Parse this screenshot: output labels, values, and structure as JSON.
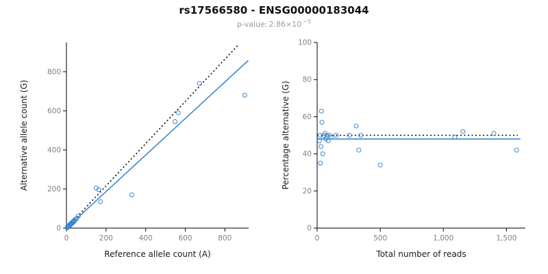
{
  "header": {
    "title": "rs17566580 - ENSG00000183044",
    "subtitle": {
      "label": "p-value:",
      "value_base": "2.86×10",
      "value_exponent": "−5"
    }
  },
  "colors": {
    "accent": "#3a87d0",
    "axis": "#000000",
    "tick_text": "#808080",
    "title_text": "#111111",
    "subtitle_text": "#9a9a9a"
  },
  "chart_data": [
    {
      "type": "scatter",
      "name": "allele-counts",
      "title": "",
      "xlabel": "Reference allele count (A)",
      "ylabel": "Alternative allele count (G)",
      "xlim": [
        0,
        920
      ],
      "ylim": [
        0,
        950
      ],
      "grid": false,
      "legend": "none",
      "point_color": "#3a87d0",
      "xticks": [
        {
          "v": 0,
          "label": "0"
        },
        {
          "v": 200,
          "label": "200"
        },
        {
          "v": 400,
          "label": "400"
        },
        {
          "v": 600,
          "label": "600"
        },
        {
          "v": 800,
          "label": "800"
        }
      ],
      "yticks": [
        {
          "v": 0,
          "label": "0"
        },
        {
          "v": 200,
          "label": "200"
        },
        {
          "v": 400,
          "label": "400"
        },
        {
          "v": 600,
          "label": "600"
        },
        {
          "v": 800,
          "label": "800"
        }
      ],
      "points": [
        [
          3,
          2
        ],
        [
          5,
          6
        ],
        [
          7,
          4
        ],
        [
          9,
          9
        ],
        [
          11,
          12
        ],
        [
          13,
          10
        ],
        [
          15,
          16
        ],
        [
          18,
          14
        ],
        [
          20,
          21
        ],
        [
          23,
          19
        ],
        [
          25,
          26
        ],
        [
          28,
          24
        ],
        [
          31,
          31
        ],
        [
          34,
          29
        ],
        [
          37,
          39
        ],
        [
          41,
          36
        ],
        [
          45,
          46
        ],
        [
          52,
          49
        ],
        [
          60,
          62
        ],
        [
          150,
          205
        ],
        [
          163,
          197
        ],
        [
          172,
          135
        ],
        [
          330,
          170
        ],
        [
          548,
          545
        ],
        [
          565,
          590
        ],
        [
          672,
          740
        ],
        [
          900,
          680
        ]
      ],
      "lines": [
        {
          "name": "identity-line",
          "style": "dotted",
          "color": "#000000",
          "x": [
            0,
            870
          ],
          "y": [
            0,
            940
          ]
        },
        {
          "name": "regression-line",
          "style": "solid",
          "color": "#3a87d0",
          "x": [
            0,
            918
          ],
          "y": [
            0,
            858
          ]
        }
      ]
    },
    {
      "type": "scatter",
      "name": "percentage-vs-reads",
      "title": "",
      "xlabel": "Total number of reads",
      "ylabel": "Percentage alternative (G)",
      "xlim": [
        0,
        1650
      ],
      "ylim": [
        0,
        100
      ],
      "grid": false,
      "legend": "none",
      "point_color": "#3a87d0",
      "xticks": [
        {
          "v": 0,
          "label": "0"
        },
        {
          "v": 500,
          "label": "500"
        },
        {
          "v": 1000,
          "label": "1,000"
        },
        {
          "v": 1500,
          "label": "1,500"
        }
      ],
      "yticks": [
        {
          "v": 0,
          "label": "0"
        },
        {
          "v": 20,
          "label": "20"
        },
        {
          "v": 40,
          "label": "40"
        },
        {
          "v": 60,
          "label": "60"
        },
        {
          "v": 80,
          "label": "80"
        },
        {
          "v": 100,
          "label": "100"
        }
      ],
      "points": [
        [
          18,
          47
        ],
        [
          22,
          50
        ],
        [
          26,
          35
        ],
        [
          30,
          44
        ],
        [
          34,
          63
        ],
        [
          38,
          57
        ],
        [
          44,
          40
        ],
        [
          50,
          49
        ],
        [
          56,
          50
        ],
        [
          62,
          51
        ],
        [
          70,
          48
        ],
        [
          78,
          50
        ],
        [
          88,
          47
        ],
        [
          98,
          50
        ],
        [
          110,
          49
        ],
        [
          150,
          50
        ],
        [
          255,
          50
        ],
        [
          310,
          55
        ],
        [
          330,
          42
        ],
        [
          345,
          50
        ],
        [
          500,
          34
        ],
        [
          1090,
          49
        ],
        [
          1155,
          52
        ],
        [
          1400,
          51
        ],
        [
          1580,
          42
        ]
      ],
      "lines": [
        {
          "name": "expected-50-line",
          "style": "dotted",
          "color": "#000000",
          "x": [
            0,
            1590
          ],
          "y": [
            50,
            50
          ]
        },
        {
          "name": "mean-line",
          "style": "solid",
          "color": "#3a87d0",
          "x": [
            0,
            1610
          ],
          "y": [
            48,
            48
          ]
        }
      ]
    }
  ]
}
